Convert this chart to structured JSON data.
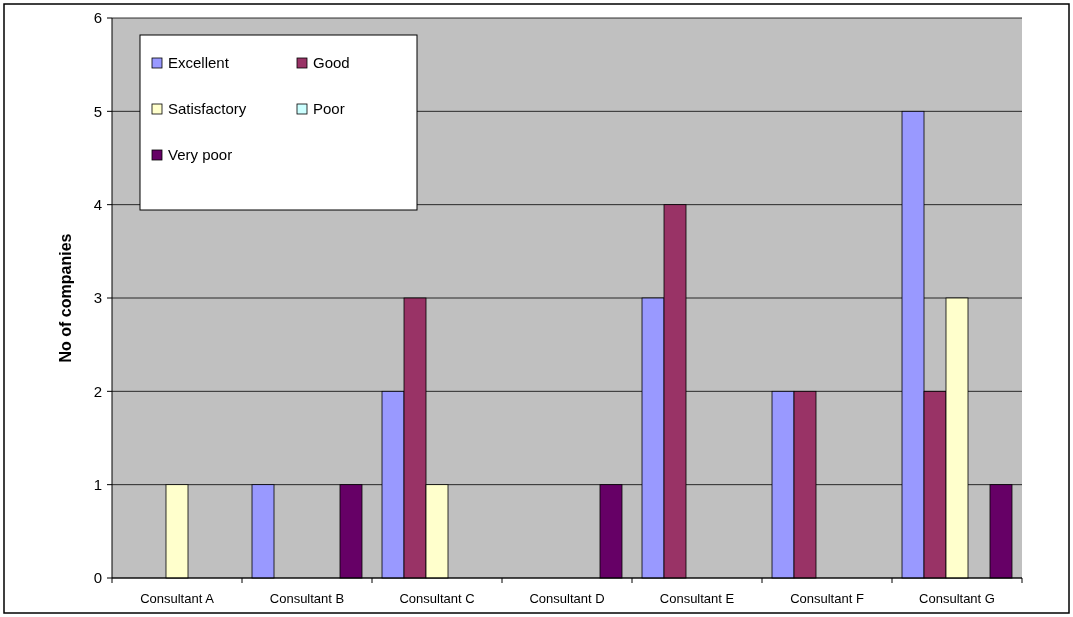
{
  "chart_data": {
    "type": "bar",
    "ylabel": "No of companies",
    "categories": [
      "Consultant A",
      "Consultant B",
      "Consultant C",
      "Consultant D",
      "Consultant E",
      "Consultant F",
      "Consultant G"
    ],
    "series": [
      {
        "name": "Excellent",
        "color": "#9999ff",
        "values": [
          0,
          1,
          2,
          0,
          3,
          2,
          5
        ]
      },
      {
        "name": "Good",
        "color": "#993366",
        "values": [
          0,
          0,
          3,
          0,
          4,
          2,
          2
        ]
      },
      {
        "name": "Satisfactory",
        "color": "#ffffcc",
        "values": [
          1,
          0,
          1,
          0,
          0,
          0,
          3
        ]
      },
      {
        "name": "Poor",
        "color": "#ccffff",
        "values": [
          0,
          0,
          0,
          0,
          0,
          0,
          0
        ]
      },
      {
        "name": "Very poor",
        "color": "#660066",
        "values": [
          0,
          1,
          0,
          1,
          0,
          0,
          1
        ]
      }
    ],
    "ylim": [
      0,
      6
    ],
    "yticks": [
      0,
      1,
      2,
      3,
      4,
      5,
      6
    ],
    "grid": "y",
    "legend": "top left"
  }
}
